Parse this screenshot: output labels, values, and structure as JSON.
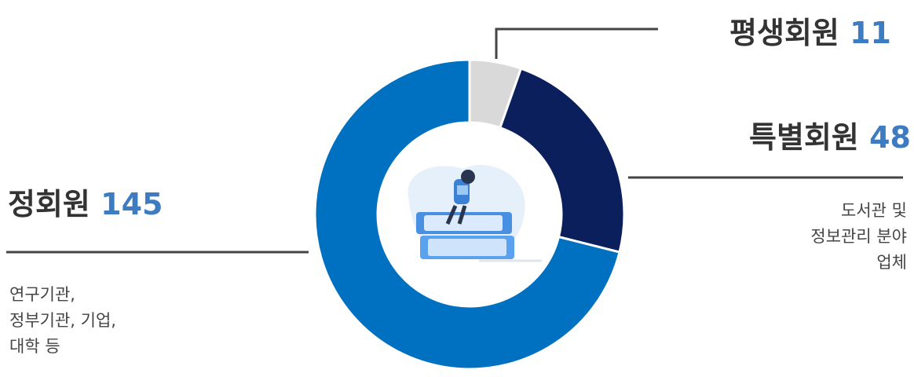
{
  "chart_data": {
    "type": "donut",
    "slices": [
      {
        "name": "평생회원",
        "value": 11,
        "color": "#d9d9d9"
      },
      {
        "name": "특별회원",
        "value": 48,
        "color": "#0b1f5c",
        "note": [
          "도서관 및",
          "정보관리 분야",
          "업체"
        ]
      },
      {
        "name": "정회원",
        "value": 145,
        "color": "#0070c0",
        "note": [
          "연구기관,",
          "정부기관, 기업,",
          "대학 등"
        ]
      }
    ]
  }
}
